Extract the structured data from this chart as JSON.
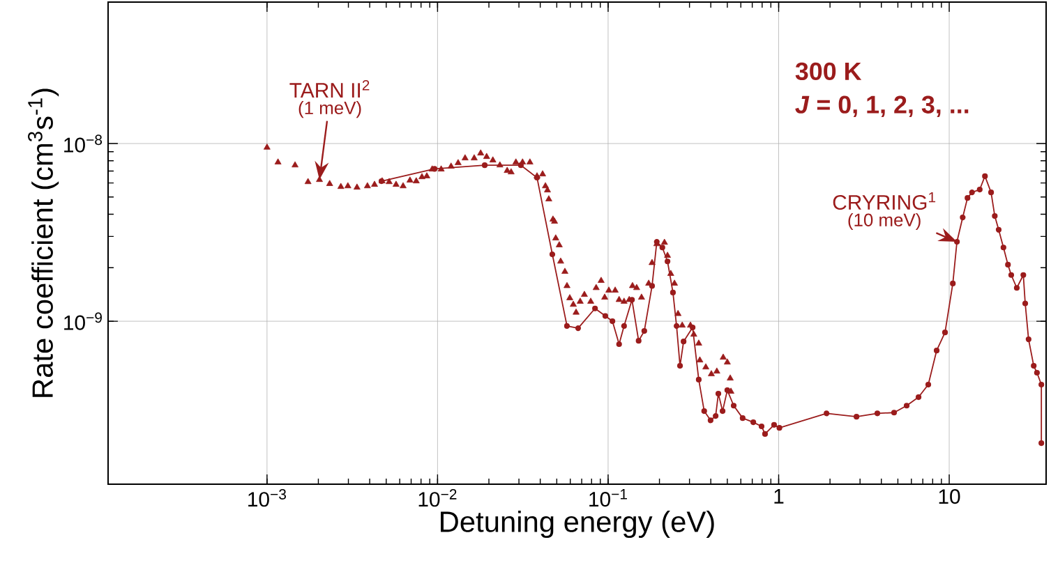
{
  "chart_data": {
    "type": "line",
    "xlabel": "Detuning energy (eV)",
    "ylabel": "Rate coefficient (cm$^{3}$s$^{-1}$)",
    "log": "xy",
    "grid": true,
    "xlim": [
      0.000117,
      37
    ],
    "ylim": [
      1.21e-10,
      6.25e-08
    ],
    "xticks": [
      {
        "value": 0.001,
        "label": "10$^{−3}$"
      },
      {
        "value": 0.01,
        "label": "10$^{−2}$"
      },
      {
        "value": 0.1,
        "label": "10$^{−1}$"
      },
      1,
      10
    ],
    "yticks": [
      {
        "value": 1e-09,
        "label": "10$^{−9}$"
      },
      {
        "value": 1e-08,
        "label": "10$^{−8}$"
      }
    ],
    "annotations": [
      "300 K",
      "*J* = 0, 1, 2, 3, ...",
      "(1 meV)",
      "(10 meV)"
    ],
    "series": [
      {
        "name": "TARN II$^{2}$",
        "type": "scatter",
        "marker": "triangle",
        "color": "#9b1c1c",
        "x": [
          0.001,
          0.00116,
          0.00146,
          0.00174,
          0.00203,
          0.00233,
          0.00271,
          0.00298,
          0.00337,
          0.00388,
          0.00427,
          0.00473,
          0.0052,
          0.00571,
          0.00628,
          0.00689,
          0.0075,
          0.0081,
          0.00865,
          0.0093,
          0.0105,
          0.012,
          0.0132,
          0.0145,
          0.0164,
          0.0179,
          0.0194,
          0.0211,
          0.0232,
          0.0256,
          0.027,
          0.0288,
          0.0315,
          0.0348,
          0.0383,
          0.0413,
          0.0429,
          0.0441,
          0.0449,
          0.0475,
          0.0485,
          0.0493,
          0.0517,
          0.0527,
          0.0558,
          0.0574,
          0.0596,
          0.0625,
          0.0649,
          0.0686,
          0.0726,
          0.0791,
          0.0851,
          0.091,
          0.0955,
          0.101,
          0.11,
          0.116,
          0.124,
          0.133,
          0.139,
          0.147,
          0.157,
          0.173,
          0.181,
          0.193,
          0.214,
          0.223,
          0.233,
          0.245,
          0.257,
          0.272,
          0.304,
          0.318,
          0.34,
          0.345,
          0.374,
          0.403,
          0.434,
          0.473,
          0.5,
          0.52,
          0.525
        ],
        "values": [
          9.5e-09,
          7.84e-09,
          7.55e-09,
          6.08e-09,
          6.25e-09,
          5.93e-09,
          5.71e-09,
          5.76e-09,
          5.66e-09,
          5.76e-09,
          5.87e-09,
          6.14e-09,
          6.08e-09,
          5.87e-09,
          5.76e-09,
          6.2e-09,
          6.14e-09,
          6.48e-09,
          6.55e-09,
          7.16e-09,
          7.16e-09,
          7.43e-09,
          7.77e-09,
          8.27e-09,
          8.27e-09,
          8.81e-09,
          8.42e-09,
          8.05e-09,
          7.55e-09,
          7.03e-09,
          6.9e-09,
          7.84e-09,
          7.84e-09,
          7.84e-09,
          6.55e-09,
          6.72e-09,
          5.76e-09,
          5.46e-09,
          4.86e-09,
          3.74e-09,
          3.64e-09,
          2.93e-09,
          2.68e-09,
          2.17e-09,
          1.9e-09,
          1.58e-09,
          1.35e-09,
          1.24e-09,
          1.12e-09,
          1.29e-09,
          1.41e-09,
          1.29e-09,
          1.54e-09,
          1.69e-09,
          1.36e-09,
          1.49e-09,
          1.49e-09,
          1.32e-09,
          1.29e-09,
          1.32e-09,
          1.58e-09,
          1.54e-09,
          1.36e-09,
          1.63e-09,
          2.13e-09,
          2.72e-09,
          2.77e-09,
          2.34e-09,
          1.85e-09,
          1.63e-09,
          1.1e-09,
          9.47e-10,
          9.47e-10,
          8.42e-10,
          7.5e-10,
          6.03e-10,
          5.51e-10,
          5.04e-10,
          5.22e-10,
          6.25e-10,
          5.87e-10,
          4.77e-10,
          4.02e-10
        ]
      },
      {
        "name": "CRYRING$^{1}$",
        "marker": "circle",
        "color": "#9b1c1c",
        "x": [
          0.00469,
          0.0096,
          0.0189,
          0.0308,
          0.0383,
          0.0471,
          0.0574,
          0.0667,
          0.0838,
          0.0963,
          0.106,
          0.116,
          0.124,
          0.138,
          0.151,
          0.163,
          0.181,
          0.193,
          0.208,
          0.223,
          0.24,
          0.252,
          0.264,
          0.277,
          0.313,
          0.34,
          0.366,
          0.399,
          0.427,
          0.443,
          0.469,
          0.5,
          0.545,
          0.615,
          0.71,
          0.794,
          0.832,
          0.94,
          1.01,
          1.91,
          2.86,
          3.79,
          4.75,
          5.63,
          6.61,
          7.54,
          8.44,
          9.45,
          10.5,
          11.1,
          12.0,
          12.8,
          13.6,
          15.1,
          16.2,
          17.6,
          18.5,
          19.5,
          20.8,
          22.1,
          23.1,
          24.9,
          27.2,
          27.9,
          29.2,
          31.3,
          32.7,
          34.7,
          34.7
        ],
        "values": [
          6.14e-09,
          7.2e-09,
          7.55e-09,
          7.55e-09,
          6.43e-09,
          2.38e-09,
          9.4e-10,
          9.14e-10,
          1.18e-09,
          1.07e-09,
          1e-09,
          7.43e-10,
          9.4e-10,
          1.32e-09,
          7.76e-10,
          8.81e-10,
          1.58e-09,
          2.8e-09,
          2.6e-09,
          2.17e-09,
          1.45e-09,
          9.4e-10,
          5.61e-10,
          7.69e-10,
          9.22e-10,
          4.69e-10,
          3.12e-10,
          2.77e-10,
          2.93e-10,
          3.91e-10,
          3.12e-10,
          4.09e-10,
          3.35e-10,
          2.85e-10,
          2.7e-10,
          2.56e-10,
          2.32e-10,
          2.61e-10,
          2.51e-10,
          3.03e-10,
          2.9e-10,
          3.03e-10,
          3.06e-10,
          3.35e-10,
          3.74e-10,
          4.4e-10,
          6.84e-10,
          8.65e-10,
          1.63e-09,
          2.8e-09,
          3.84e-09,
          4.94e-09,
          5.31e-09,
          5.51e-09,
          6.55e-09,
          5.31e-09,
          3.91e-09,
          3.27e-09,
          2.6e-09,
          2.08e-09,
          1.82e-09,
          1.54e-09,
          1.82e-09,
          1.26e-09,
          7.91e-10,
          5.61e-10,
          5.13e-10,
          4.4e-10,
          2.06e-10
        ]
      }
    ]
  }
}
